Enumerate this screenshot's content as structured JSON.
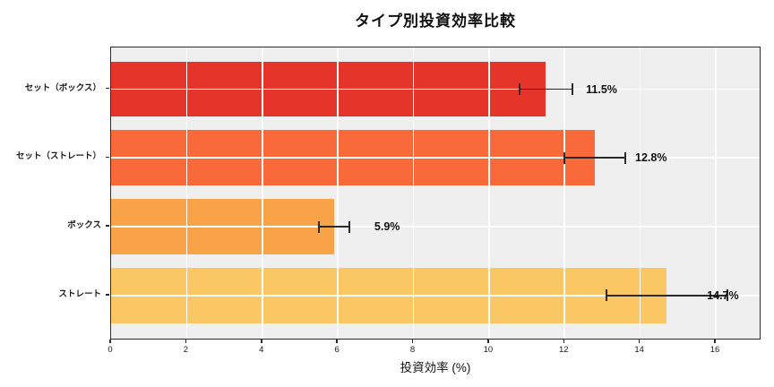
{
  "chart_data": {
    "type": "bar",
    "orientation": "horizontal",
    "title": "タイプ別投資効率比較",
    "xlabel": "投資効率 (%)",
    "categories": [
      "セット（ボックス）",
      "セット（ストレート）",
      "ボックス",
      "ストレート"
    ],
    "values": [
      11.5,
      12.8,
      5.9,
      14.7
    ],
    "errors": [
      0.7,
      0.8,
      0.4,
      1.6
    ],
    "value_labels": [
      "11.5%",
      "12.8%",
      "5.9%",
      "14.7%"
    ],
    "bar_colors": [
      "#e5342a",
      "#f9693a",
      "#f9a348",
      "#fac764"
    ],
    "xticks": [
      0,
      2,
      4,
      6,
      8,
      10,
      12,
      14,
      16
    ],
    "xtick_labels": [
      "0",
      "2",
      "4",
      "6",
      "8",
      "10",
      "12",
      "14",
      "16"
    ],
    "xlim": [
      0,
      17.2
    ],
    "grid": true,
    "legend": false,
    "plot_bg_color": "#efefef",
    "grid_color": "#ffffff",
    "error_bar_color": "#2b2b2b",
    "spine_color": "#2b2b2b"
  }
}
